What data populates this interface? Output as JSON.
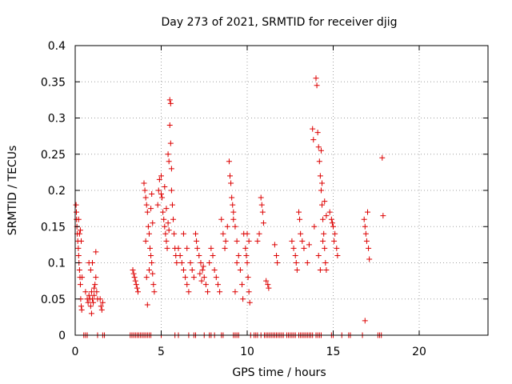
{
  "chart_data": {
    "type": "scatter",
    "title": "Day 273 of 2021, SRMTID for receiver djig",
    "xlabel": "GPS time / hours",
    "ylabel": "SRMTID / TECUs",
    "xlim": [
      0,
      24
    ],
    "ylim": [
      0,
      0.4
    ],
    "x_ticks": [
      0,
      5,
      10,
      15,
      20
    ],
    "x_tick_labels": [
      "0",
      "5",
      "10",
      "15",
      "20"
    ],
    "y_ticks": [
      0,
      0.05,
      0.1,
      0.15,
      0.2,
      0.25,
      0.3,
      0.35,
      0.4
    ],
    "y_tick_labels": [
      "0",
      "0.05",
      "0.1",
      "0.15",
      "0.2",
      "0.25",
      "0.3",
      "0.35",
      "0.4"
    ],
    "grid": true,
    "marker": "+",
    "color": "#dd0000",
    "series": [
      {
        "points": [
          [
            0.05,
            0.18
          ],
          [
            0.07,
            0.17
          ],
          [
            0.08,
            0.16
          ],
          [
            0.1,
            0.15
          ],
          [
            0.12,
            0.14
          ],
          [
            0.15,
            0.13
          ],
          [
            0.18,
            0.12
          ],
          [
            0.2,
            0.11
          ],
          [
            0.22,
            0.1
          ],
          [
            0.25,
            0.09
          ],
          [
            0.28,
            0.08
          ],
          [
            0.3,
            0.07
          ],
          [
            0.3,
            0.145
          ],
          [
            0.25,
            0.14
          ],
          [
            0.35,
            0.13
          ],
          [
            0.32,
            0.05
          ],
          [
            0.35,
            0.04
          ],
          [
            0.38,
            0.035
          ],
          [
            0.4,
            0.08
          ],
          [
            0.2,
            0.16
          ],
          [
            0.6,
            0.06
          ],
          [
            0.7,
            0.05
          ],
          [
            0.75,
            0.045
          ],
          [
            0.8,
            0.055
          ],
          [
            0.85,
            0.05
          ],
          [
            0.9,
            0.04
          ],
          [
            0.95,
            0.06
          ],
          [
            1.0,
            0.05
          ],
          [
            1.05,
            0.045
          ],
          [
            1.1,
            0.065
          ],
          [
            1.15,
            0.07
          ],
          [
            1.2,
            0.08
          ],
          [
            1.25,
            0.06
          ],
          [
            1.3,
            0.05
          ],
          [
            0.8,
            0.1
          ],
          [
            0.9,
            0.09
          ],
          [
            1.0,
            0.1
          ],
          [
            1.2,
            0.115
          ],
          [
            1.1,
            0.055
          ],
          [
            0.95,
            0.03
          ],
          [
            1.45,
            0.05
          ],
          [
            1.5,
            0.04
          ],
          [
            1.55,
            0.035
          ],
          [
            1.6,
            0.045
          ],
          [
            3.35,
            0.09
          ],
          [
            3.4,
            0.085
          ],
          [
            3.45,
            0.08
          ],
          [
            3.5,
            0.075
          ],
          [
            3.55,
            0.07
          ],
          [
            3.6,
            0.065
          ],
          [
            3.65,
            0.06
          ],
          [
            4.0,
            0.21
          ],
          [
            4.05,
            0.2
          ],
          [
            4.1,
            0.19
          ],
          [
            4.15,
            0.18
          ],
          [
            4.2,
            0.17
          ],
          [
            4.25,
            0.15
          ],
          [
            4.3,
            0.14
          ],
          [
            4.35,
            0.12
          ],
          [
            4.4,
            0.11
          ],
          [
            4.45,
            0.1
          ],
          [
            4.5,
            0.085
          ],
          [
            4.55,
            0.07
          ],
          [
            4.6,
            0.06
          ],
          [
            4.2,
            0.042
          ],
          [
            4.3,
            0.09
          ],
          [
            4.15,
            0.08
          ],
          [
            4.4,
            0.175
          ],
          [
            4.45,
            0.195
          ],
          [
            4.1,
            0.13
          ],
          [
            4.5,
            0.155
          ],
          [
            4.8,
            0.18
          ],
          [
            4.85,
            0.2
          ],
          [
            4.9,
            0.215
          ],
          [
            5.0,
            0.22
          ],
          [
            5.05,
            0.19
          ],
          [
            5.1,
            0.17
          ],
          [
            5.15,
            0.16
          ],
          [
            5.2,
            0.15
          ],
          [
            5.25,
            0.14
          ],
          [
            5.3,
            0.13
          ],
          [
            5.35,
            0.12
          ],
          [
            5.4,
            0.25
          ],
          [
            5.45,
            0.24
          ],
          [
            5.5,
            0.29
          ],
          [
            5.55,
            0.32
          ],
          [
            5.5,
            0.325
          ],
          [
            5.6,
            0.2
          ],
          [
            5.65,
            0.18
          ],
          [
            5.7,
            0.16
          ],
          [
            5.75,
            0.14
          ],
          [
            5.8,
            0.12
          ],
          [
            5.85,
            0.11
          ],
          [
            5.9,
            0.1
          ],
          [
            5.0,
            0.195
          ],
          [
            5.2,
            0.205
          ],
          [
            5.4,
            0.155
          ],
          [
            5.55,
            0.265
          ],
          [
            5.6,
            0.23
          ],
          [
            5.3,
            0.175
          ],
          [
            5.45,
            0.145
          ],
          [
            6.0,
            0.12
          ],
          [
            6.1,
            0.11
          ],
          [
            6.2,
            0.1
          ],
          [
            6.3,
            0.09
          ],
          [
            6.4,
            0.08
          ],
          [
            6.5,
            0.07
          ],
          [
            6.6,
            0.06
          ],
          [
            6.3,
            0.14
          ],
          [
            6.5,
            0.12
          ],
          [
            6.7,
            0.1
          ],
          [
            6.8,
            0.09
          ],
          [
            6.9,
            0.08
          ],
          [
            7.0,
            0.14
          ],
          [
            7.05,
            0.13
          ],
          [
            7.1,
            0.12
          ],
          [
            7.2,
            0.11
          ],
          [
            7.3,
            0.1
          ],
          [
            7.4,
            0.09
          ],
          [
            7.5,
            0.08
          ],
          [
            7.6,
            0.07
          ],
          [
            7.7,
            0.06
          ],
          [
            7.25,
            0.085
          ],
          [
            7.35,
            0.075
          ],
          [
            7.45,
            0.095
          ],
          [
            7.8,
            0.1
          ],
          [
            7.9,
            0.12
          ],
          [
            8.0,
            0.11
          ],
          [
            8.1,
            0.09
          ],
          [
            8.2,
            0.08
          ],
          [
            8.3,
            0.07
          ],
          [
            8.4,
            0.06
          ],
          [
            8.5,
            0.16
          ],
          [
            8.6,
            0.14
          ],
          [
            8.7,
            0.12
          ],
          [
            8.75,
            0.13
          ],
          [
            8.85,
            0.15
          ],
          [
            8.95,
            0.24
          ],
          [
            9.0,
            0.22
          ],
          [
            9.05,
            0.21
          ],
          [
            9.1,
            0.19
          ],
          [
            9.15,
            0.18
          ],
          [
            9.2,
            0.17
          ],
          [
            9.3,
            0.15
          ],
          [
            9.4,
            0.13
          ],
          [
            9.5,
            0.11
          ],
          [
            9.6,
            0.09
          ],
          [
            9.7,
            0.07
          ],
          [
            9.75,
            0.05
          ],
          [
            9.3,
            0.06
          ],
          [
            9.4,
            0.1
          ],
          [
            9.2,
            0.16
          ],
          [
            9.8,
            0.14
          ],
          [
            9.9,
            0.12
          ],
          [
            10.0,
            0.1
          ],
          [
            10.05,
            0.08
          ],
          [
            10.1,
            0.06
          ],
          [
            10.15,
            0.045
          ],
          [
            10.0,
            0.14
          ],
          [
            10.1,
            0.13
          ],
          [
            9.95,
            0.11
          ],
          [
            10.6,
            0.13
          ],
          [
            10.7,
            0.14
          ],
          [
            10.8,
            0.19
          ],
          [
            10.85,
            0.18
          ],
          [
            10.9,
            0.17
          ],
          [
            10.95,
            0.155
          ],
          [
            11.1,
            0.075
          ],
          [
            11.2,
            0.07
          ],
          [
            11.25,
            0.065
          ],
          [
            11.6,
            0.125
          ],
          [
            11.7,
            0.11
          ],
          [
            11.75,
            0.1
          ],
          [
            12.6,
            0.13
          ],
          [
            12.7,
            0.12
          ],
          [
            12.8,
            0.11
          ],
          [
            12.85,
            0.1
          ],
          [
            12.9,
            0.09
          ],
          [
            13.0,
            0.17
          ],
          [
            13.05,
            0.16
          ],
          [
            13.1,
            0.14
          ],
          [
            13.2,
            0.13
          ],
          [
            13.3,
            0.12
          ],
          [
            13.5,
            0.1
          ],
          [
            13.6,
            0.125
          ],
          [
            13.8,
            0.285
          ],
          [
            13.85,
            0.27
          ],
          [
            13.9,
            0.15
          ],
          [
            14.0,
            0.355
          ],
          [
            14.05,
            0.345
          ],
          [
            14.1,
            0.28
          ],
          [
            14.15,
            0.26
          ],
          [
            14.2,
            0.24
          ],
          [
            14.25,
            0.22
          ],
          [
            14.3,
            0.2
          ],
          [
            14.35,
            0.18
          ],
          [
            14.4,
            0.16
          ],
          [
            14.45,
            0.14
          ],
          [
            14.5,
            0.12
          ],
          [
            14.55,
            0.1
          ],
          [
            14.6,
            0.09
          ],
          [
            14.3,
            0.255
          ],
          [
            14.35,
            0.21
          ],
          [
            14.5,
            0.185
          ],
          [
            14.6,
            0.165
          ],
          [
            14.15,
            0.11
          ],
          [
            14.25,
            0.09
          ],
          [
            14.4,
            0.13
          ],
          [
            14.8,
            0.17
          ],
          [
            14.9,
            0.16
          ],
          [
            15.0,
            0.15
          ],
          [
            15.1,
            0.14
          ],
          [
            15.2,
            0.12
          ],
          [
            15.25,
            0.11
          ],
          [
            15.05,
            0.13
          ],
          [
            14.95,
            0.155
          ],
          [
            16.8,
            0.16
          ],
          [
            16.85,
            0.15
          ],
          [
            16.9,
            0.14
          ],
          [
            16.95,
            0.13
          ],
          [
            17.0,
            0.17
          ],
          [
            17.05,
            0.12
          ],
          [
            17.1,
            0.105
          ],
          [
            16.85,
            0.02
          ],
          [
            17.85,
            0.245
          ],
          [
            17.9,
            0.165
          ],
          [
            0.5,
            0
          ],
          [
            0.6,
            0
          ],
          [
            0.7,
            0
          ],
          [
            1.3,
            0
          ],
          [
            1.6,
            0
          ],
          [
            1.7,
            0
          ],
          [
            3.2,
            0
          ],
          [
            3.3,
            0
          ],
          [
            3.4,
            0
          ],
          [
            3.5,
            0
          ],
          [
            3.6,
            0
          ],
          [
            3.7,
            0
          ],
          [
            3.8,
            0
          ],
          [
            3.9,
            0
          ],
          [
            4.0,
            0
          ],
          [
            4.1,
            0
          ],
          [
            4.2,
            0
          ],
          [
            4.3,
            0
          ],
          [
            4.4,
            0
          ],
          [
            5.0,
            0
          ],
          [
            5.8,
            0
          ],
          [
            6.0,
            0
          ],
          [
            6.6,
            0
          ],
          [
            6.9,
            0
          ],
          [
            7.0,
            0
          ],
          [
            7.5,
            0
          ],
          [
            7.8,
            0
          ],
          [
            7.9,
            0
          ],
          [
            8.1,
            0
          ],
          [
            8.5,
            0
          ],
          [
            8.6,
            0
          ],
          [
            9.2,
            0
          ],
          [
            9.3,
            0
          ],
          [
            9.4,
            0
          ],
          [
            9.5,
            0
          ],
          [
            10.2,
            0
          ],
          [
            10.4,
            0
          ],
          [
            10.5,
            0
          ],
          [
            10.6,
            0
          ],
          [
            10.8,
            0
          ],
          [
            11.0,
            0
          ],
          [
            11.1,
            0
          ],
          [
            11.2,
            0
          ],
          [
            11.3,
            0
          ],
          [
            11.4,
            0
          ],
          [
            11.5,
            0
          ],
          [
            11.6,
            0
          ],
          [
            11.7,
            0
          ],
          [
            11.8,
            0
          ],
          [
            11.9,
            0
          ],
          [
            12.0,
            0
          ],
          [
            12.1,
            0
          ],
          [
            12.3,
            0
          ],
          [
            12.4,
            0
          ],
          [
            12.5,
            0
          ],
          [
            12.6,
            0
          ],
          [
            12.7,
            0
          ],
          [
            12.8,
            0
          ],
          [
            13.0,
            0
          ],
          [
            13.1,
            0
          ],
          [
            13.2,
            0
          ],
          [
            13.3,
            0
          ],
          [
            13.4,
            0
          ],
          [
            13.5,
            0
          ],
          [
            13.6,
            0
          ],
          [
            13.7,
            0
          ],
          [
            13.8,
            0
          ],
          [
            14.0,
            0
          ],
          [
            14.1,
            0
          ],
          [
            14.2,
            0
          ],
          [
            14.3,
            0
          ],
          [
            14.9,
            0
          ],
          [
            15.0,
            0
          ],
          [
            15.5,
            0
          ],
          [
            15.9,
            0
          ],
          [
            16.0,
            0
          ],
          [
            16.7,
            0
          ],
          [
            17.6,
            0
          ],
          [
            17.7,
            0
          ],
          [
            17.8,
            0
          ]
        ]
      }
    ]
  }
}
